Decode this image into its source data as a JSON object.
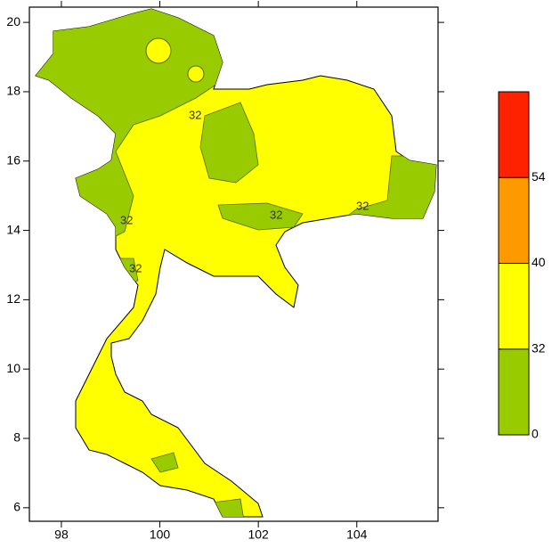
{
  "map": {
    "xlim": [
      97.35,
      105.65
    ],
    "ylim": [
      5.61,
      20.44
    ],
    "xticks": [
      98,
      100,
      102,
      104
    ],
    "yticks": [
      6,
      8,
      10,
      12,
      14,
      16,
      18,
      20
    ],
    "contour_labels": [
      "32",
      "32",
      "32",
      "32",
      "32"
    ],
    "legend": {
      "boundaries": [
        0,
        32,
        40,
        54
      ],
      "colors": [
        "#99cc00",
        "#ffff00",
        "#ff9900",
        "#ff2200"
      ]
    }
  }
}
